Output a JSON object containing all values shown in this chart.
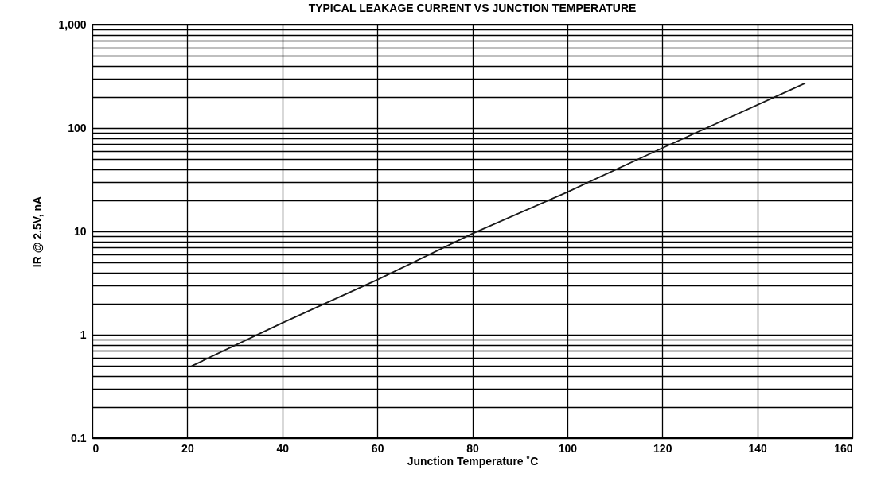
{
  "chart_data": {
    "type": "line",
    "title": "TYPICAL LEAKAGE CURRENT VS JUNCTION TEMPERATURE",
    "xlabel": "Junction Temperature ˚C",
    "ylabel": "IR @ 2.5V, nA",
    "x": [
      21,
      40,
      60,
      80,
      100,
      120,
      150
    ],
    "series": [
      {
        "color": "#1a1a1a",
        "values": [
          0.5,
          1.3,
          3.4,
          9.5,
          24,
          64,
          270
        ]
      }
    ],
    "log": "y",
    "grid": true,
    "marker": "none",
    "line_style": "solid",
    "xlim": [
      0,
      160
    ],
    "xticks": [
      0,
      20,
      40,
      60,
      80,
      100,
      120,
      140,
      160
    ],
    "ylim": [
      0.1,
      1000
    ],
    "yticks": [
      0.1,
      {
        "value": 0.2,
        "label": null
      },
      {
        "value": 0.3,
        "label": null
      },
      {
        "value": 0.4,
        "label": null
      },
      {
        "value": 0.5,
        "label": null
      },
      {
        "value": 0.6,
        "label": null
      },
      {
        "value": 0.7,
        "label": null
      },
      {
        "value": 0.8,
        "label": null
      },
      {
        "value": 0.9,
        "label": null
      },
      1,
      {
        "value": 2,
        "label": null
      },
      {
        "value": 3,
        "label": null
      },
      {
        "value": 4,
        "label": null
      },
      {
        "value": 5,
        "label": null
      },
      {
        "value": 6,
        "label": null
      },
      {
        "value": 7,
        "label": null
      },
      {
        "value": 8,
        "label": null
      },
      {
        "value": 9,
        "label": null
      },
      10,
      {
        "value": 20,
        "label": null
      },
      {
        "value": 30,
        "label": null
      },
      {
        "value": 40,
        "label": null
      },
      {
        "value": 50,
        "label": null
      },
      {
        "value": 60,
        "label": null
      },
      {
        "value": 70,
        "label": null
      },
      {
        "value": 80,
        "label": null
      },
      {
        "value": 90,
        "label": null
      },
      100,
      {
        "value": 200,
        "label": null
      },
      {
        "value": 300,
        "label": null
      },
      {
        "value": 400,
        "label": null
      },
      {
        "value": 500,
        "label": null
      },
      {
        "value": 600,
        "label": null
      },
      {
        "value": 700,
        "label": null
      },
      {
        "value": 800,
        "label": null
      },
      {
        "value": 900,
        "label": null
      },
      {
        "value": 1000,
        "label": "1,000"
      }
    ]
  }
}
